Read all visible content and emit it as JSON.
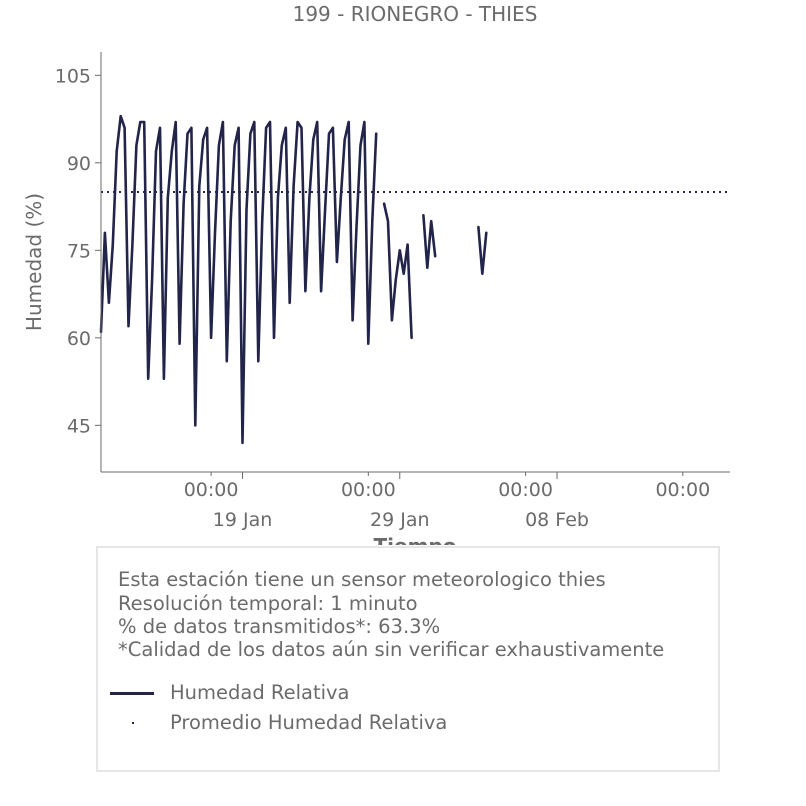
{
  "chart_data": {
    "type": "line",
    "title": "199 - RIONEGRO - THIES",
    "xlabel": "Tiempo",
    "ylabel": "Humedad (%)",
    "ylim": [
      37,
      109
    ],
    "yticks": [
      45,
      60,
      75,
      90,
      105
    ],
    "xlim": [
      "2025-01-10T00:00",
      "2025-02-19T00:00"
    ],
    "x_major_ticks": [
      {
        "x": "2025-01-19T00:00",
        "label": "00:00\n19 Jan"
      },
      {
        "x": "2025-01-29T00:00",
        "label": "00:00\n29 Jan"
      },
      {
        "x": "2025-02-08T00:00",
        "label": "00:00\n08 Feb"
      }
    ],
    "x_minor_ticks": [
      {
        "x": "2025-01-17T00:00",
        "label": "00:00"
      },
      {
        "x": "2025-01-27T00:00",
        "label": "00:00"
      },
      {
        "x": "2025-02-06T00:00",
        "label": "00:00"
      },
      {
        "x": "2025-02-16T00:00",
        "label": "00:00"
      }
    ],
    "colors": {
      "line": "#222449",
      "axis": "#6b6b6b",
      "text": "#6b6b6b"
    },
    "series": [
      {
        "name": "Humedad Relativa",
        "style": "solid",
        "segments": [
          {
            "start": "2025-01-10T00:00",
            "step_hours": 6,
            "values": [
              61,
              78,
              66,
              76,
              92,
              98,
              96,
              62,
              76,
              93,
              97,
              97,
              53,
              70,
              92,
              96,
              53,
              84,
              92,
              97,
              59,
              83,
              95,
              96,
              45,
              86,
              94,
              96,
              60,
              78,
              93,
              97,
              56,
              80,
              93,
              96,
              42,
              82,
              95,
              97,
              56,
              80,
              96,
              97,
              60,
              84,
              93,
              96,
              66,
              86,
              97,
              96,
              68,
              84,
              94,
              97,
              68,
              82,
              95,
              96,
              73,
              84,
              94,
              97,
              63,
              79,
              93,
              97,
              59,
              80,
              95
            ]
          },
          {
            "start": "2025-01-28T00:00",
            "step_hours": 6,
            "values": [
              83,
              80,
              63,
              70,
              75,
              71,
              76,
              60
            ]
          },
          {
            "start": "2025-01-30T12:00",
            "step_hours": 6,
            "values": [
              81,
              72,
              80,
              74
            ]
          },
          {
            "start": "2025-02-03T00:00",
            "step_hours": 6,
            "values": [
              79,
              71,
              78
            ]
          }
        ]
      },
      {
        "name": "Promedio Humedad Relativa",
        "style": "dotted",
        "value": 85
      }
    ]
  },
  "info": {
    "line1": "Esta estación tiene un sensor meteorologico thies",
    "line2": "Resolución temporal: 1 minuto",
    "line3": "% de datos transmitidos*: 63.3%",
    "line4": "*Calidad de los datos aún sin verificar exhaustivamente"
  },
  "legend": {
    "items": [
      "Humedad Relativa",
      "Promedio Humedad Relativa"
    ]
  }
}
